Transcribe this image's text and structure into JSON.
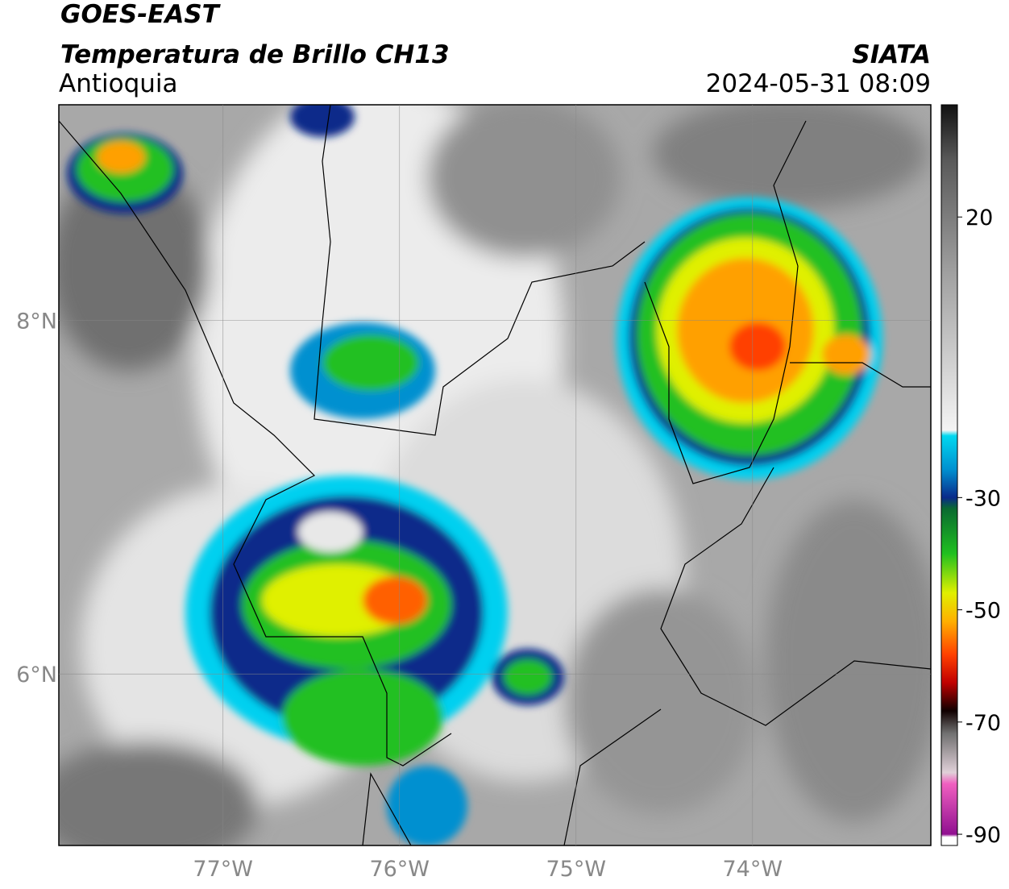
{
  "header": {
    "title": "GOES-EAST",
    "subtitle": "Temperatura de Brillo CH13",
    "region": "Antioquia",
    "source": "SIATA",
    "datetime": "2024-05-31 08:09"
  },
  "chart_data": {
    "type": "map",
    "xlim": [
      -77.93,
      -72.99
    ],
    "ylim": [
      5.03,
      9.22
    ],
    "xticks": [
      {
        "value": -77,
        "label": "77°W"
      },
      {
        "value": -76,
        "label": "76°W"
      },
      {
        "value": -75,
        "label": "75°W"
      },
      {
        "value": -74,
        "label": "74°W"
      }
    ],
    "yticks": [
      {
        "value": 6,
        "label": "6°N"
      },
      {
        "value": 8,
        "label": "8°N"
      }
    ],
    "grid": true
  },
  "colorbar": {
    "clim": [
      -92,
      40
    ],
    "ticks": [
      20,
      -30,
      -50,
      -70,
      -90
    ],
    "colormap": [
      {
        "value": 40,
        "color": "#111111"
      },
      {
        "value": 30,
        "color": "#5a5a5a"
      },
      {
        "value": 10,
        "color": "#a0a0a0"
      },
      {
        "value": -18,
        "color": "#f4f4f4"
      },
      {
        "value": -19,
        "color": "#00d8f0"
      },
      {
        "value": -25,
        "color": "#0090d0"
      },
      {
        "value": -30,
        "color": "#0a2a8a"
      },
      {
        "value": -32,
        "color": "#0a6a30"
      },
      {
        "value": -40,
        "color": "#20c020"
      },
      {
        "value": -47,
        "color": "#e0f000"
      },
      {
        "value": -52,
        "color": "#ffb000"
      },
      {
        "value": -58,
        "color": "#ff4000"
      },
      {
        "value": -63,
        "color": "#c00000"
      },
      {
        "value": -68,
        "color": "#100000"
      },
      {
        "value": -72,
        "color": "#707070"
      },
      {
        "value": -79,
        "color": "#e0d0d8"
      },
      {
        "value": -81,
        "color": "#f060c0"
      },
      {
        "value": -90,
        "color": "#901090"
      },
      {
        "value": -90.5,
        "color": "#ffffff"
      },
      {
        "value": -92,
        "color": "#ffffff"
      }
    ]
  }
}
